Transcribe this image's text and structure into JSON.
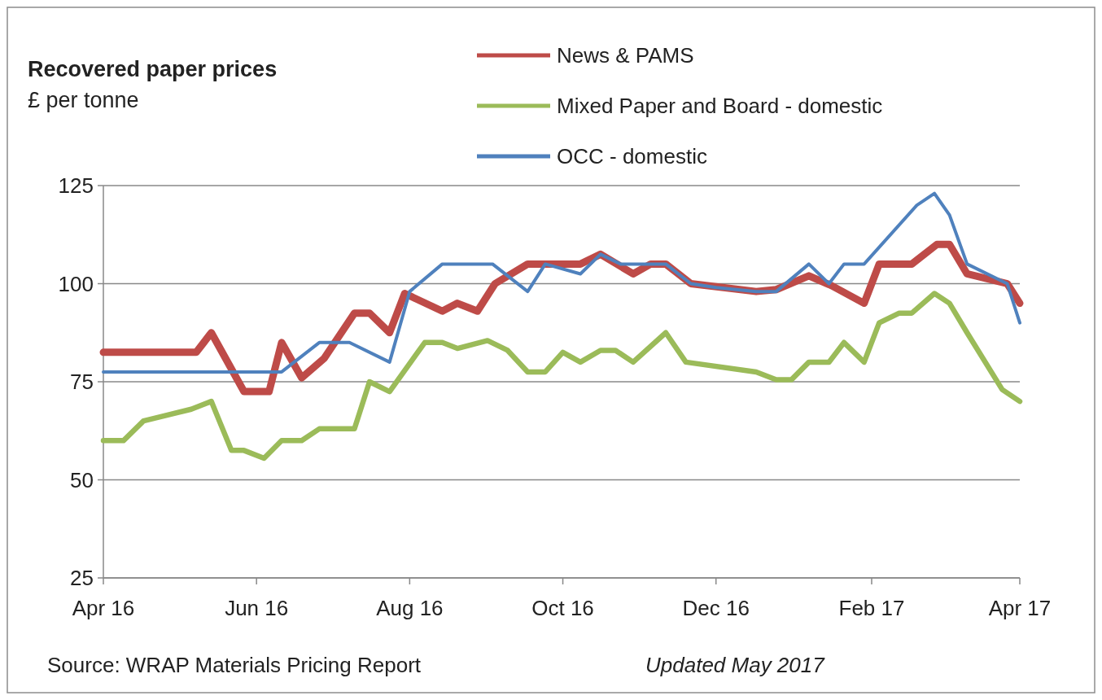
{
  "chart_data": {
    "type": "line",
    "title": "Recovered paper prices",
    "subtitle": "£ per tonne",
    "annotations": [
      "Source: WRAP Materials Pricing Report",
      "Updated May 2017"
    ],
    "xlim": [
      "2016-04-01",
      "2017-04-01"
    ],
    "xticks": [
      {
        "value": "2016-04-01",
        "label": "Apr 16"
      },
      {
        "value": "2016-06-01",
        "label": "Jun 16"
      },
      {
        "value": "2016-08-01",
        "label": "Aug 16"
      },
      {
        "value": "2016-10-01",
        "label": "Oct 16"
      },
      {
        "value": "2016-12-01",
        "label": "Dec 16"
      },
      {
        "value": "2017-02-01",
        "label": "Feb 17"
      },
      {
        "value": "2017-04-01",
        "label": "Apr 17"
      }
    ],
    "ylim": [
      25,
      125
    ],
    "yticks": [
      25,
      50,
      75,
      100,
      125
    ],
    "grid": "y",
    "legend": "top right",
    "marker": "none",
    "line_style": "solid",
    "series": [
      {
        "name": "News & PAMS",
        "color": "#be4b48",
        "x": [
          "2016-04-01",
          "2016-05-08",
          "2016-05-14",
          "2016-05-27",
          "2016-06-06",
          "2016-06-11",
          "2016-06-19",
          "2016-06-28",
          "2016-07-10",
          "2016-07-16",
          "2016-07-24",
          "2016-07-30",
          "2016-08-14",
          "2016-08-20",
          "2016-08-28",
          "2016-09-04",
          "2016-09-17",
          "2016-10-01",
          "2016-10-08",
          "2016-10-16",
          "2016-10-29",
          "2016-11-05",
          "2016-11-11",
          "2016-11-21",
          "2016-12-17",
          "2016-12-25",
          "2017-01-07",
          "2017-01-16",
          "2017-01-29",
          "2017-02-04",
          "2017-02-17",
          "2017-02-27",
          "2017-03-04",
          "2017-03-11",
          "2017-03-27",
          "2017-04-01"
        ],
        "values": [
          82.5,
          82.5,
          87.5,
          72.5,
          72.5,
          85,
          76,
          81,
          92.5,
          92.5,
          87.5,
          97.5,
          93,
          95,
          93,
          100,
          105,
          105,
          105,
          107.5,
          102.5,
          105,
          105,
          100,
          98,
          98.5,
          102,
          99.5,
          95,
          105,
          105,
          110,
          110,
          102.5,
          100,
          95
        ]
      },
      {
        "name": "Mixed Paper and Board - domestic",
        "color": "#9bbb59",
        "x": [
          "2016-04-01",
          "2016-04-09",
          "2016-04-17",
          "2016-05-06",
          "2016-05-14",
          "2016-05-22",
          "2016-05-27",
          "2016-06-04",
          "2016-06-11",
          "2016-06-19",
          "2016-06-26",
          "2016-07-10",
          "2016-07-16",
          "2016-07-24",
          "2016-08-07",
          "2016-08-14",
          "2016-08-20",
          "2016-09-01",
          "2016-09-09",
          "2016-09-17",
          "2016-09-24",
          "2016-10-01",
          "2016-10-08",
          "2016-10-16",
          "2016-10-22",
          "2016-10-29",
          "2016-11-11",
          "2016-11-19",
          "2016-12-17",
          "2016-12-25",
          "2016-12-31",
          "2017-01-07",
          "2017-01-15",
          "2017-01-21",
          "2017-01-29",
          "2017-02-04",
          "2017-02-12",
          "2017-02-17",
          "2017-02-26",
          "2017-03-04",
          "2017-03-11",
          "2017-03-25",
          "2017-04-01"
        ],
        "values": [
          60,
          60,
          65,
          68,
          70,
          57.5,
          57.5,
          55.5,
          60,
          60,
          63,
          63,
          75,
          72.5,
          85,
          85,
          83.5,
          85.5,
          83,
          77.5,
          77.5,
          82.5,
          80,
          83,
          83,
          80,
          87.5,
          80,
          77.5,
          75.5,
          75.5,
          80,
          80,
          85,
          80,
          90,
          92.5,
          92.5,
          97.5,
          95,
          87.5,
          73,
          70
        ]
      },
      {
        "name": "OCC - domestic",
        "color": "#4f81bd",
        "x": [
          "2016-04-01",
          "2016-06-11",
          "2016-06-26",
          "2016-07-08",
          "2016-07-24",
          "2016-08-01",
          "2016-08-14",
          "2016-09-03",
          "2016-09-17",
          "2016-09-24",
          "2016-10-08",
          "2016-10-16",
          "2016-10-24",
          "2016-11-11",
          "2016-11-21",
          "2016-12-01",
          "2016-12-17",
          "2016-12-25",
          "2017-01-07",
          "2017-01-15",
          "2017-01-21",
          "2017-01-29",
          "2017-02-19",
          "2017-02-26",
          "2017-03-04",
          "2017-03-11",
          "2017-03-27",
          "2017-04-01"
        ],
        "values": [
          77.5,
          77.5,
          85,
          85,
          80,
          98,
          105,
          105,
          98,
          105,
          102.5,
          107.5,
          105,
          105,
          100,
          99,
          98,
          98,
          105,
          100,
          105,
          105,
          120,
          123,
          117.5,
          105,
          100,
          90
        ]
      }
    ]
  }
}
